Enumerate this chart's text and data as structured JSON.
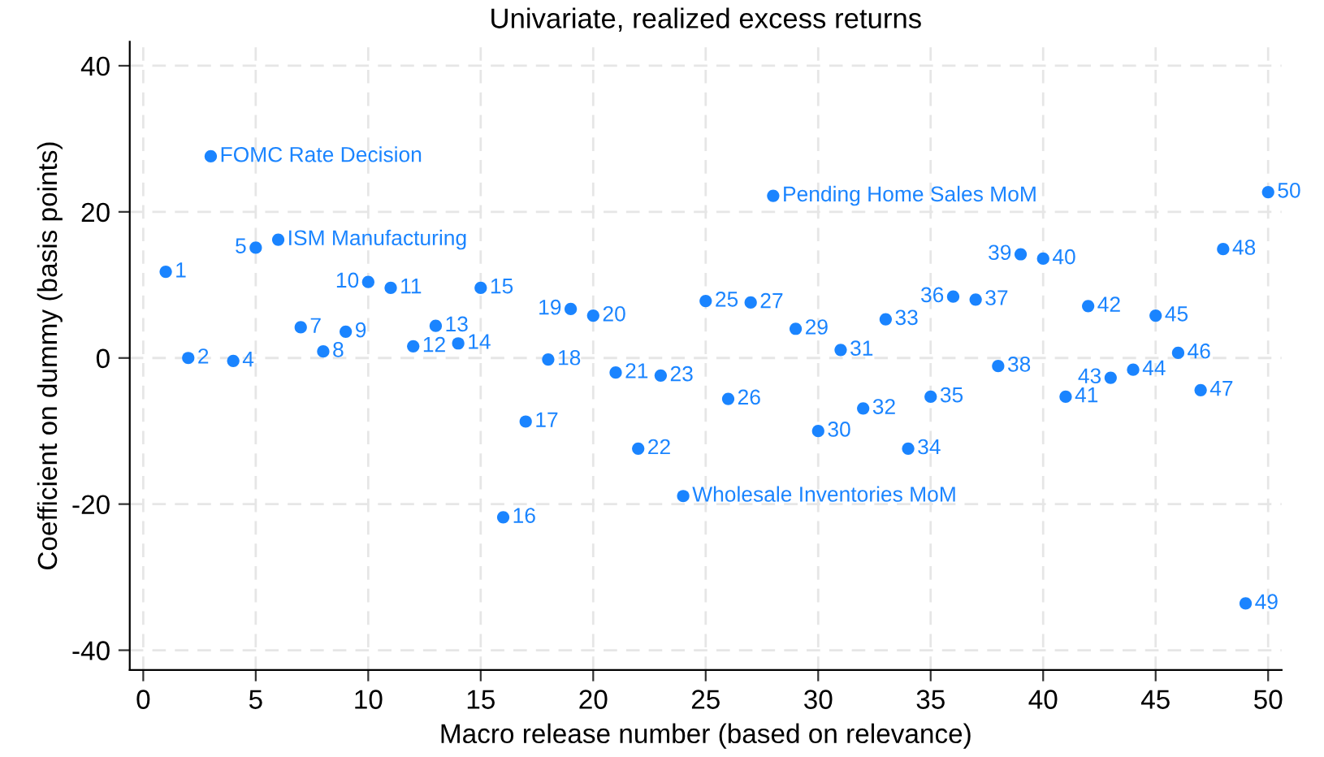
{
  "chart_data": {
    "type": "scatter",
    "title": "Univariate, realized excess returns",
    "xlabel": "Macro release number (based on relevance)",
    "ylabel": "Coefficient on dummy (basis points)",
    "x": [
      1,
      2,
      3,
      4,
      5,
      6,
      7,
      8,
      9,
      10,
      11,
      12,
      13,
      14,
      15,
      16,
      17,
      18,
      19,
      20,
      21,
      22,
      23,
      24,
      25,
      26,
      27,
      28,
      29,
      30,
      31,
      32,
      33,
      34,
      35,
      36,
      37,
      38,
      39,
      40,
      41,
      42,
      43,
      44,
      45,
      46,
      47,
      48,
      49,
      50
    ],
    "series": [
      {
        "color": "#1a84ff",
        "values": [
          11.8,
          0,
          27.6,
          -0.4,
          15.1,
          16.2,
          4.2,
          0.9,
          3.6,
          10.4,
          9.6,
          1.6,
          4.4,
          2.0,
          9.6,
          -21.8,
          -8.7,
          -0.2,
          6.7,
          5.8,
          -2.0,
          -12.4,
          -2.4,
          -18.9,
          7.8,
          -5.6,
          7.6,
          22.2,
          4.0,
          -10,
          1.1,
          -6.9,
          5.3,
          -12.4,
          -5.3,
          8.4,
          8.0,
          -1.1,
          14.2,
          13.6,
          -5.3,
          7.1,
          -2.7,
          -1.6,
          5.8,
          0.7,
          -4.4,
          14.9,
          -33.6,
          22.7
        ]
      }
    ],
    "annotations": [
      {
        "text": "1",
        "x": 1,
        "y": 11.8
      },
      {
        "text": "2",
        "x": 2,
        "y": 0
      },
      {
        "text": "FOMC Rate Decision",
        "x": 3,
        "y": 27.6
      },
      {
        "text": "4",
        "x": 4,
        "y": -0.4
      },
      {
        "text": "5",
        "x": 5,
        "y": 15.1
      },
      {
        "text": "ISM Manufacturing",
        "x": 6,
        "y": 16.2
      },
      {
        "text": "7",
        "x": 7,
        "y": 4.2
      },
      {
        "text": "8",
        "x": 8,
        "y": 0.9
      },
      {
        "text": "9",
        "x": 9,
        "y": 3.6
      },
      {
        "text": "10",
        "x": 10,
        "y": 10.4
      },
      {
        "text": "11",
        "x": 11,
        "y": 9.6
      },
      {
        "text": "12",
        "x": 12,
        "y": 1.6
      },
      {
        "text": "13",
        "x": 13,
        "y": 4.4
      },
      {
        "text": "14",
        "x": 14,
        "y": 2.0
      },
      {
        "text": "15",
        "x": 15,
        "y": 9.6
      },
      {
        "text": "16",
        "x": 16,
        "y": -21.8
      },
      {
        "text": "17",
        "x": 17,
        "y": -8.7
      },
      {
        "text": "18",
        "x": 18,
        "y": -0.2
      },
      {
        "text": "19",
        "x": 19,
        "y": 6.7
      },
      {
        "text": "20",
        "x": 20,
        "y": 5.8
      },
      {
        "text": "21",
        "x": 21,
        "y": -2.0
      },
      {
        "text": "22",
        "x": 22,
        "y": -12.4
      },
      {
        "text": "23",
        "x": 23,
        "y": -2.4
      },
      {
        "text": "Wholesale Inventories MoM",
        "x": 24,
        "y": -18.9
      },
      {
        "text": "25",
        "x": 25,
        "y": 7.8
      },
      {
        "text": "26",
        "x": 26,
        "y": -5.6
      },
      {
        "text": "27",
        "x": 27,
        "y": 7.6
      },
      {
        "text": "Pending Home Sales MoM",
        "x": 28,
        "y": 22.2
      },
      {
        "text": "29",
        "x": 29,
        "y": 4.0
      },
      {
        "text": "30",
        "x": 30,
        "y": -10
      },
      {
        "text": "31",
        "x": 31,
        "y": 1.1
      },
      {
        "text": "32",
        "x": 32,
        "y": -6.9
      },
      {
        "text": "33",
        "x": 33,
        "y": 5.3
      },
      {
        "text": "34",
        "x": 34,
        "y": -12.4
      },
      {
        "text": "35",
        "x": 35,
        "y": -5.3
      },
      {
        "text": "36",
        "x": 36,
        "y": 8.4
      },
      {
        "text": "37",
        "x": 37,
        "y": 8.0
      },
      {
        "text": "38",
        "x": 38,
        "y": -1.1
      },
      {
        "text": "39",
        "x": 39,
        "y": 14.2
      },
      {
        "text": "40",
        "x": 40,
        "y": 13.6
      },
      {
        "text": "41",
        "x": 41,
        "y": -5.3
      },
      {
        "text": "42",
        "x": 42,
        "y": 7.1
      },
      {
        "text": "43",
        "x": 43,
        "y": -2.7
      },
      {
        "text": "44",
        "x": 44,
        "y": -1.6
      },
      {
        "text": "45",
        "x": 45,
        "y": 5.8
      },
      {
        "text": "46",
        "x": 46,
        "y": 0.7
      },
      {
        "text": "47",
        "x": 47,
        "y": -4.4
      },
      {
        "text": "48",
        "x": 48,
        "y": 14.9
      },
      {
        "text": "49",
        "x": 49,
        "y": -33.6
      },
      {
        "text": "50",
        "x": 50,
        "y": 22.7
      }
    ],
    "xlim": [
      -0.6,
      50.6
    ],
    "ylim": [
      -42.7,
      43.3
    ],
    "xticks": [
      0,
      5,
      10,
      15,
      20,
      25,
      30,
      35,
      40,
      45,
      50
    ],
    "yticks": [
      -40,
      -20,
      0,
      20,
      40
    ],
    "grid": true,
    "marker": "circle"
  }
}
